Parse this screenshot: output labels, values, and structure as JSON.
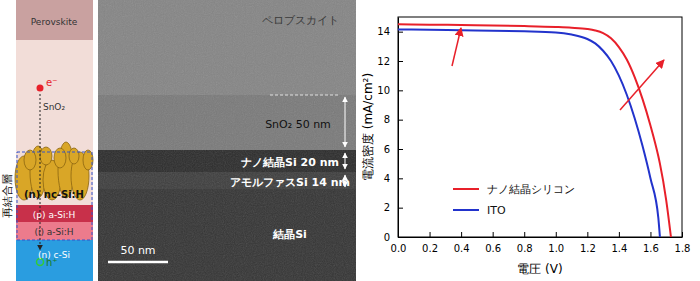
{
  "chart_data": {
    "type": "line",
    "x_label": "電圧 (V)",
    "y_label": "電流密度 (mA/cm²)",
    "x": [
      0,
      0.2,
      0.4,
      0.6,
      0.8,
      1.0,
      1.1,
      1.2,
      1.25,
      1.3,
      1.35,
      1.4,
      1.45,
      1.5,
      1.55,
      1.6,
      1.65,
      1.66,
      1.7,
      1.73
    ],
    "series": [
      {
        "name": "ナノ結晶シリコン",
        "color": "#e8202a",
        "values": [
          14.5,
          14.48,
          14.45,
          14.42,
          14.38,
          14.32,
          14.27,
          14.18,
          14.08,
          13.9,
          13.55,
          12.95,
          12.1,
          10.9,
          9.4,
          7.6,
          5.5,
          5.0,
          2.5,
          0
        ]
      },
      {
        "name": "ITO",
        "color": "#2233cc",
        "values": [
          14.15,
          14.13,
          14.1,
          14.07,
          14.03,
          13.95,
          13.8,
          13.5,
          13.2,
          12.7,
          12.0,
          11.0,
          9.7,
          8.1,
          6.2,
          4.0,
          1.3,
          0,
          null,
          null
        ]
      }
    ],
    "xlim": [
      0,
      1.8
    ],
    "xticks": [
      {
        "value": 0,
        "label": "0.0"
      },
      {
        "value": 0.2,
        "label": "0.2"
      },
      {
        "value": 0.4,
        "label": "0.4"
      },
      {
        "value": 0.6,
        "label": "0.6"
      },
      {
        "value": 0.8,
        "label": "0.8"
      },
      {
        "value": 1.0,
        "label": "1.0"
      },
      {
        "value": 1.2,
        "label": "1.2"
      },
      {
        "value": 1.4,
        "label": "1.4"
      },
      {
        "value": 1.6,
        "label": "1.6"
      },
      {
        "value": 1.8,
        "label": "1.8"
      }
    ],
    "ylim": [
      0,
      15
    ],
    "yticks": [
      0,
      2,
      4,
      6,
      8,
      10,
      12,
      14
    ],
    "grid": false,
    "legend": "lower left"
  },
  "diagram": {
    "side_label": "再結合層",
    "layers": [
      "Perovskite",
      "SnO₂",
      "(n) nc-Si:H",
      "(p) a-Si:H",
      "(i) a-Si:H",
      "(n) c-Si"
    ],
    "electron": "e⁻",
    "hole": "h⁺"
  },
  "image": {
    "labels": [
      "ペロブスカイト",
      "SnO₂ 50 nm",
      "ナノ結晶Si 20 nm",
      "アモルファスSi 14 nm",
      "結晶Si"
    ],
    "scale_bar": "50 nm"
  }
}
